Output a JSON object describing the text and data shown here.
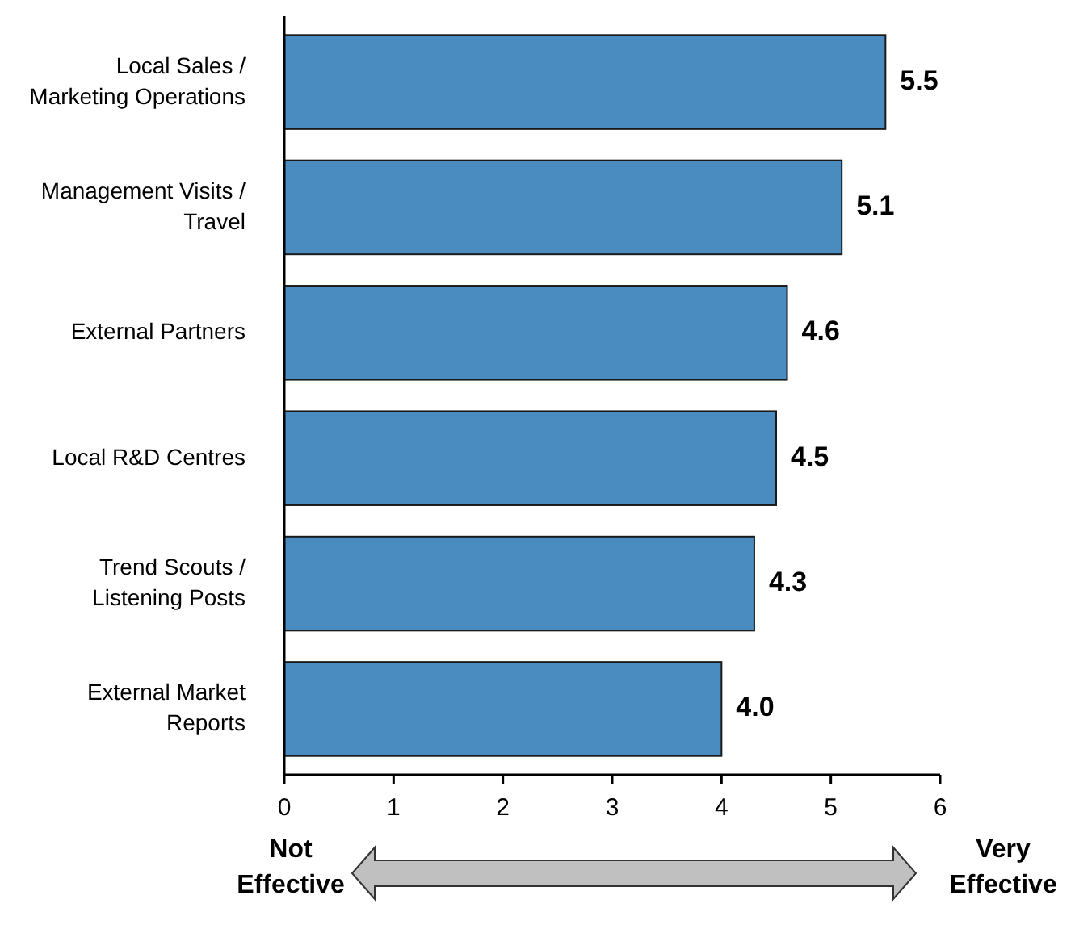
{
  "chart_data": {
    "type": "bar",
    "orientation": "horizontal",
    "categories": [
      "Local Sales /\nMarketing Operations",
      "Management Visits /\nTravel",
      "External Partners",
      "Local R&D Centres",
      "Trend Scouts /\nListening Posts",
      "External Market\nReports"
    ],
    "values": [
      5.5,
      5.1,
      4.6,
      4.5,
      4.3,
      4.0
    ],
    "value_labels": [
      "5.5",
      "5.1",
      "4.6",
      "4.5",
      "4.3",
      "4.0"
    ],
    "color": "#4a8cc0",
    "xlim": [
      0,
      6
    ],
    "xticks": [
      0,
      1,
      2,
      3,
      4,
      5,
      6
    ],
    "annotations": [
      "Not\nEffective",
      "Very\nEffective"
    ]
  }
}
